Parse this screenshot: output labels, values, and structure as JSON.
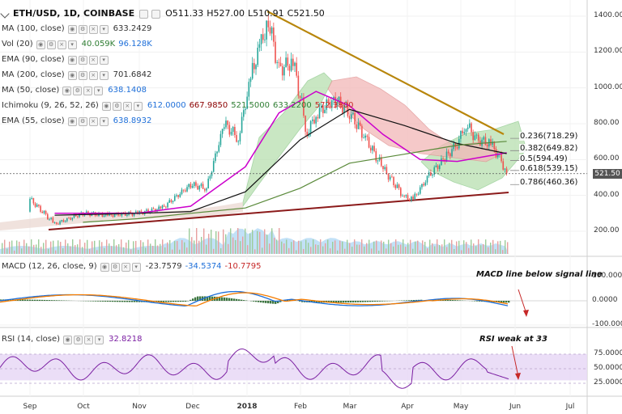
{
  "header": {
    "symbol": "ETH/USD, 1D, COINBASE",
    "open": "O511.33",
    "high": "H527.00",
    "low": "L510.91",
    "close": "C521.50"
  },
  "indicators": [
    {
      "name": "MA (100, close)",
      "values": [
        "633.2429"
      ],
      "colors": [
        "#333333"
      ]
    },
    {
      "name": "Vol (20)",
      "values": [
        "40.059K",
        "96.128K"
      ],
      "colors": [
        "#2e7d32",
        "#1e6fd9"
      ]
    },
    {
      "name": "EMA (90, close)",
      "values": [],
      "colors": []
    },
    {
      "name": "MA (200, close)",
      "values": [
        "701.6842"
      ],
      "colors": [
        "#333333"
      ]
    },
    {
      "name": "MA (50, close)",
      "values": [
        "638.1408"
      ],
      "colors": [
        "#1e6fd9"
      ]
    },
    {
      "name": "Ichimoku (9, 26, 52, 26)",
      "values": [
        "612.0000",
        "667.9850",
        "521.5000",
        "633.2200",
        "572.3800"
      ],
      "colors": [
        "#1e6fd9",
        "#8b0000",
        "#2e7d32",
        "#2e7d32",
        "#c62828"
      ]
    },
    {
      "name": "EMA (55, close)",
      "values": [
        "638.8932"
      ],
      "colors": [
        "#1e6fd9"
      ]
    }
  ],
  "macd": {
    "name": "MACD (12, 26, close, 9)",
    "values": [
      "-23.7579",
      "-34.5374",
      "-10.7795"
    ],
    "colors": [
      "#333333",
      "#1e6fd9",
      "#c62828"
    ],
    "annotation": "MACD line below signal line"
  },
  "rsi": {
    "name": "RSI (14, close)",
    "value": "32.8218",
    "annotation": "RSI weak at 33"
  },
  "fib_labels": [
    "0.236(718.29)",
    "0.382(649.82)",
    "0.5(594.49)",
    "0.618(539.15)",
    "0.786(460.36)"
  ],
  "last_price_tag": "521.50",
  "colors": {
    "bull": "#26a69a",
    "bear": "#ef5350",
    "ma_black": "#111111",
    "ma_magenta": "#cc00cc",
    "ma_green": "#5a8a3a",
    "resistance": "#b8860b",
    "support": "#8b1a1a",
    "cloud_green": "#b7e0b0",
    "cloud_red": "#f2b7b7",
    "macd_line": "#1e6fd9",
    "signal_line": "#f57c00",
    "hist": "#1b5e20",
    "rsi_line": "#7b1fa2",
    "rsi_band": "#e6d6f5",
    "volume": "#90c8f0"
  },
  "chart_data": {
    "type": "line",
    "title": "ETH/USD, 1D, COINBASE",
    "price_axis": {
      "ticks": [
        "1400.00",
        "1200.00",
        "1000.00",
        "800.00",
        "600.00",
        "400.00",
        "200.00"
      ],
      "ylim": [
        0,
        1500
      ]
    },
    "x_ticks": [
      "Sep",
      "Oct",
      "Nov",
      "Dec",
      "2018",
      "Feb",
      "Mar",
      "Apr",
      "May",
      "Jun",
      "Jul"
    ],
    "series": [
      {
        "name": "Price",
        "x": [
          "Aug 20",
          "Sep 1",
          "Sep 15",
          "Oct 1",
          "Oct 15",
          "Nov 1",
          "Nov 15",
          "Dec 1",
          "Dec 10",
          "Dec 20",
          "Dec 28",
          "Jan 5",
          "Jan 10",
          "Jan 14",
          "Jan 20",
          "Jan 28",
          "Feb 5",
          "Feb 10",
          "Feb 20",
          "Mar 1",
          "Mar 10",
          "Mar 20",
          "Apr 1",
          "Apr 6",
          "Apr 15",
          "Apr 25",
          "May 1",
          "May 6",
          "May 12",
          "May 20",
          "May 26",
          "May 29"
        ],
        "values": [
          300,
          380,
          240,
          300,
          290,
          300,
          330,
          460,
          440,
          800,
          720,
          1100,
          1250,
          1380,
          1100,
          1150,
          750,
          850,
          940,
          860,
          720,
          550,
          390,
          380,
          510,
          620,
          690,
          800,
          710,
          690,
          590,
          521.5
        ]
      },
      {
        "name": "MA (50, close)",
        "x": [
          "Sep 15",
          "Nov 1",
          "Dec 1",
          "Jan 1",
          "Jan 20",
          "Feb 10",
          "Mar 1",
          "Mar 20",
          "Apr 10",
          "May 1",
          "May 29"
        ],
        "values": [
          300,
          300,
          340,
          560,
          860,
          980,
          900,
          740,
          600,
          590,
          638.14
        ]
      },
      {
        "name": "MA (100, close)",
        "x": [
          "Sep 15",
          "Nov 1",
          "Dec 1",
          "Jan 1",
          "Feb 1",
          "Mar 1",
          "Apr 1",
          "May 1",
          "May 29"
        ],
        "values": [
          290,
          300,
          310,
          420,
          710,
          880,
          790,
          690,
          633.24
        ]
      },
      {
        "name": "MA (200, close)",
        "x": [
          "Oct 1",
          "Nov 1",
          "Dec 1",
          "Jan 1",
          "Feb 1",
          "Mar 1",
          "Apr 1",
          "May 1",
          "May 29"
        ],
        "values": [
          250,
          270,
          300,
          330,
          440,
          580,
          630,
          680,
          701.68
        ]
      }
    ],
    "macd_axis": {
      "ticks": [
        "100.0000",
        "0.0000",
        "-100.0000"
      ],
      "ylim": [
        -110,
        130
      ]
    },
    "rsi_axis": {
      "ticks": [
        "75.0000",
        "50.0000",
        "25.0000"
      ],
      "ylim": [
        10,
        90
      ]
    }
  }
}
